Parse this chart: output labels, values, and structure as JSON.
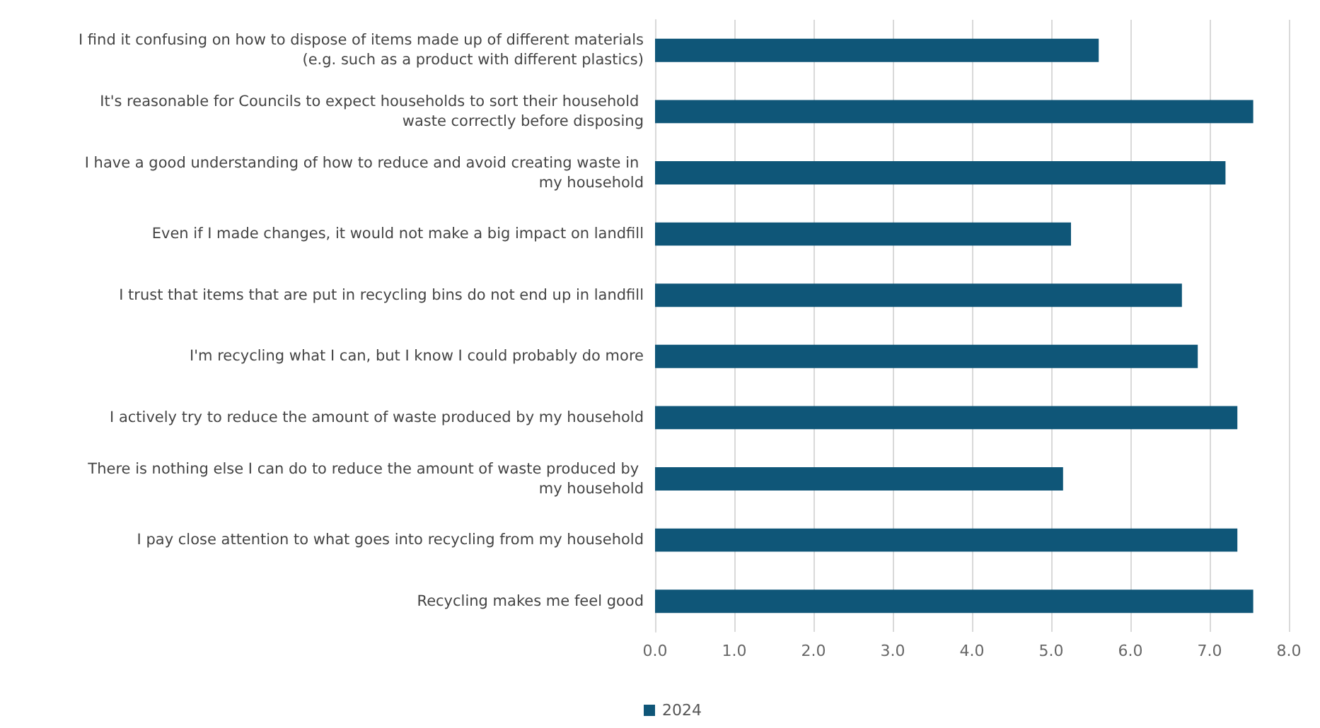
{
  "chart_data": {
    "type": "bar",
    "orientation": "horizontal",
    "categories": [
      "I find it confusing on how to dispose of items made up of different materials (e.g. such as a product with different plastics)",
      "It's reasonable for Councils to expect households to sort their household waste correctly before disposing",
      "I have a good understanding of how to reduce and avoid creating waste in my household",
      "Even if I made changes, it would not make a big impact on landfill",
      "I trust that items that are put in recycling bins do not end up in landfill",
      "I'm recycling what I can, but I know I could probably do more",
      "I actively try to reduce the amount of waste produced by my household",
      "There is nothing else I can do to reduce the amount of waste produced by my household",
      "I pay close attention to what goes into recycling from my household",
      "Recycling makes me feel good"
    ],
    "series": [
      {
        "name": "2024",
        "color": "#0f5678",
        "values": [
          5.6,
          7.55,
          7.2,
          5.25,
          6.65,
          6.85,
          7.35,
          5.15,
          7.35,
          7.55
        ]
      }
    ],
    "xlim": [
      0,
      8
    ],
    "xticks": [
      {
        "value": 0,
        "label": "0.0"
      },
      {
        "value": 1,
        "label": "1.0"
      },
      {
        "value": 2,
        "label": "2.0"
      },
      {
        "value": 3,
        "label": "3.0"
      },
      {
        "value": 4,
        "label": "4.0"
      },
      {
        "value": 5,
        "label": "5.0"
      },
      {
        "value": 6,
        "label": "6.0"
      },
      {
        "value": 7,
        "label": "7.0"
      },
      {
        "value": 8,
        "label": "8.0"
      }
    ],
    "grid": "x",
    "legend": "bottom left"
  }
}
